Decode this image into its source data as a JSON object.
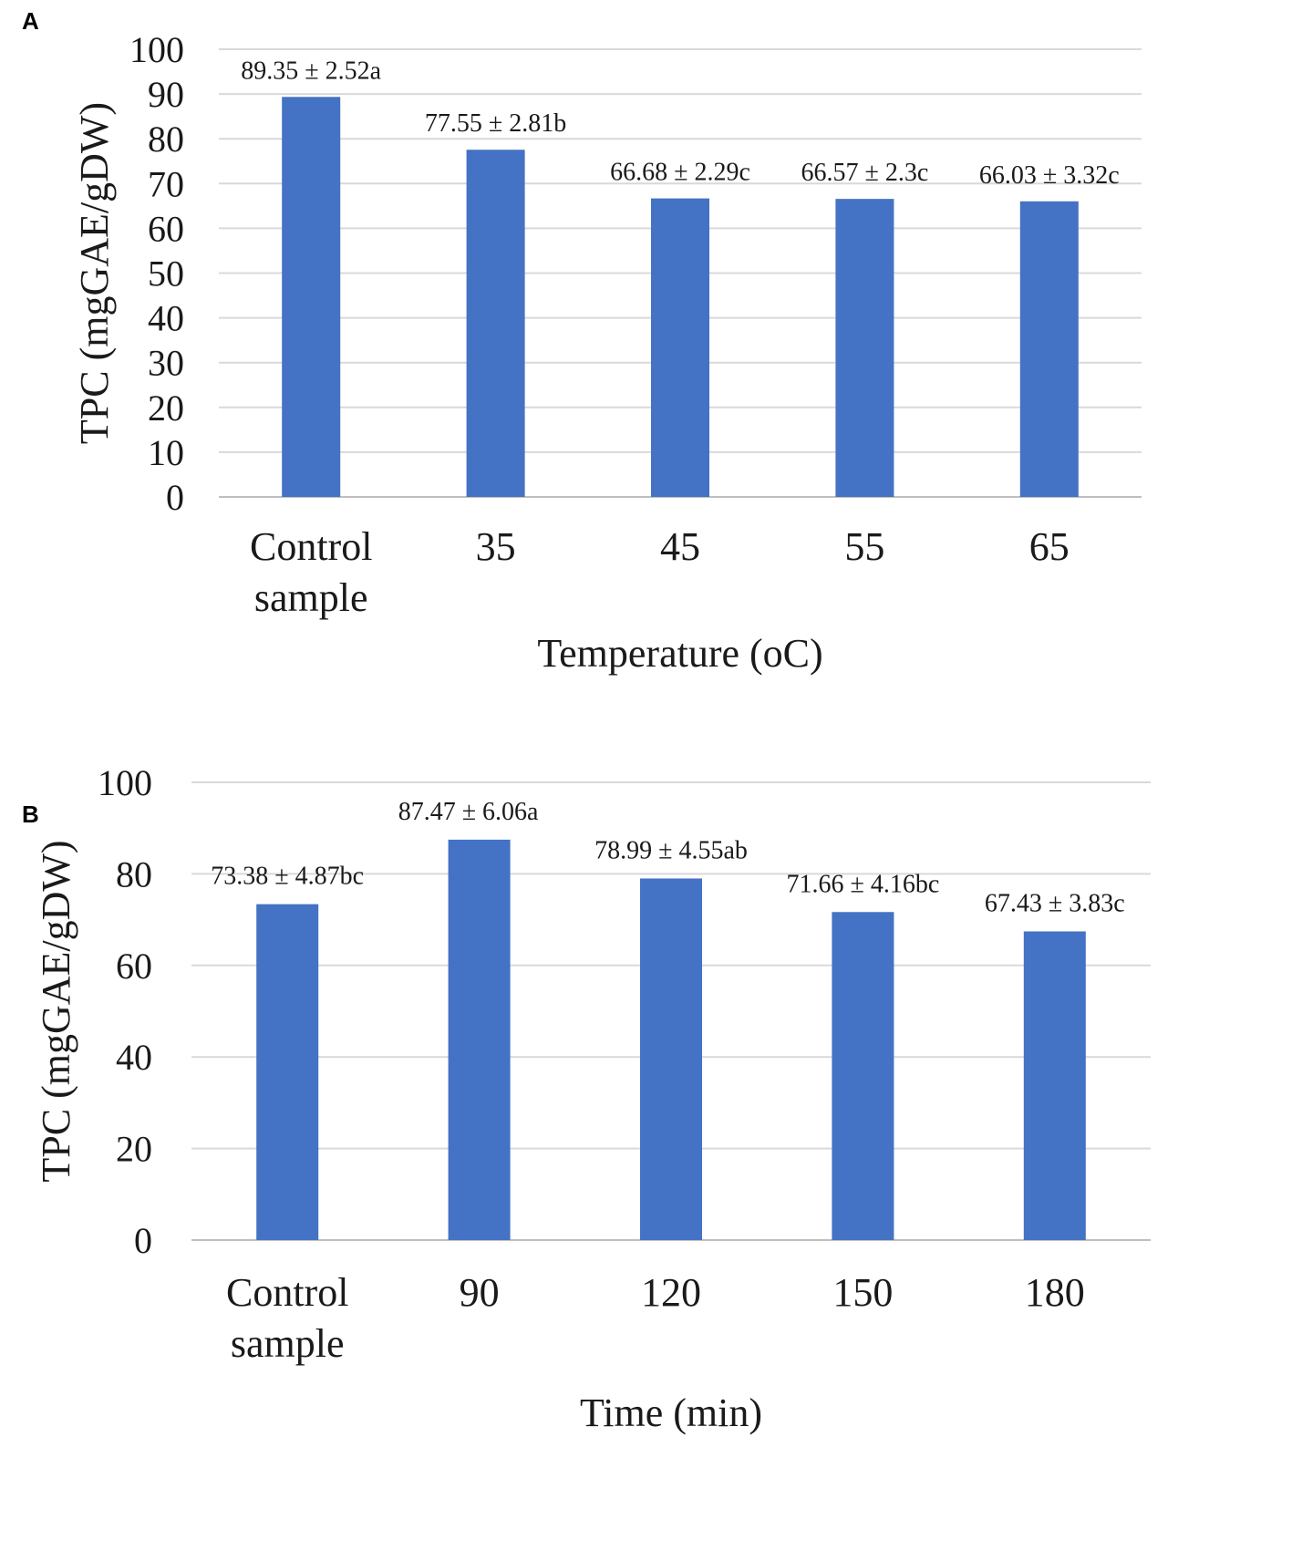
{
  "chart_data": [
    {
      "panel": "A",
      "type": "bar",
      "title": "",
      "xlabel": "Temperature (oC)",
      "ylabel": "TPC (mgGAE/gDW)",
      "categories": [
        "Control sample",
        "35",
        "45",
        "55",
        "65"
      ],
      "values": [
        89.35,
        77.55,
        66.68,
        66.57,
        66.03
      ],
      "data_labels": [
        "89.35 ± 2.52a",
        "77.55 ± 2.81b",
        "66.68 ± 2.29c",
        "66.57 ± 2.3c",
        "66.03 ± 3.32c"
      ],
      "ylim": [
        0,
        100
      ],
      "yticks": [
        0,
        10,
        20,
        30,
        40,
        50,
        60,
        70,
        80,
        90,
        100
      ],
      "grid": true,
      "bar_color": "#4472c4"
    },
    {
      "panel": "B",
      "type": "bar",
      "title": "",
      "xlabel": "Time (min)",
      "ylabel": "TPC (mgGAE/gDW)",
      "categories": [
        "Control sample",
        "90",
        "120",
        "150",
        "180"
      ],
      "values": [
        73.38,
        87.47,
        78.99,
        71.66,
        67.43
      ],
      "data_labels": [
        "73.38 ± 4.87bc",
        "87.47 ± 6.06a",
        "78.99 ± 4.55ab",
        "71.66 ± 4.16bc",
        "67.43 ± 3.83c"
      ],
      "ylim": [
        0,
        100
      ],
      "yticks": [
        0,
        20,
        40,
        60,
        80,
        100
      ],
      "grid": true,
      "bar_color": "#4472c4"
    }
  ]
}
